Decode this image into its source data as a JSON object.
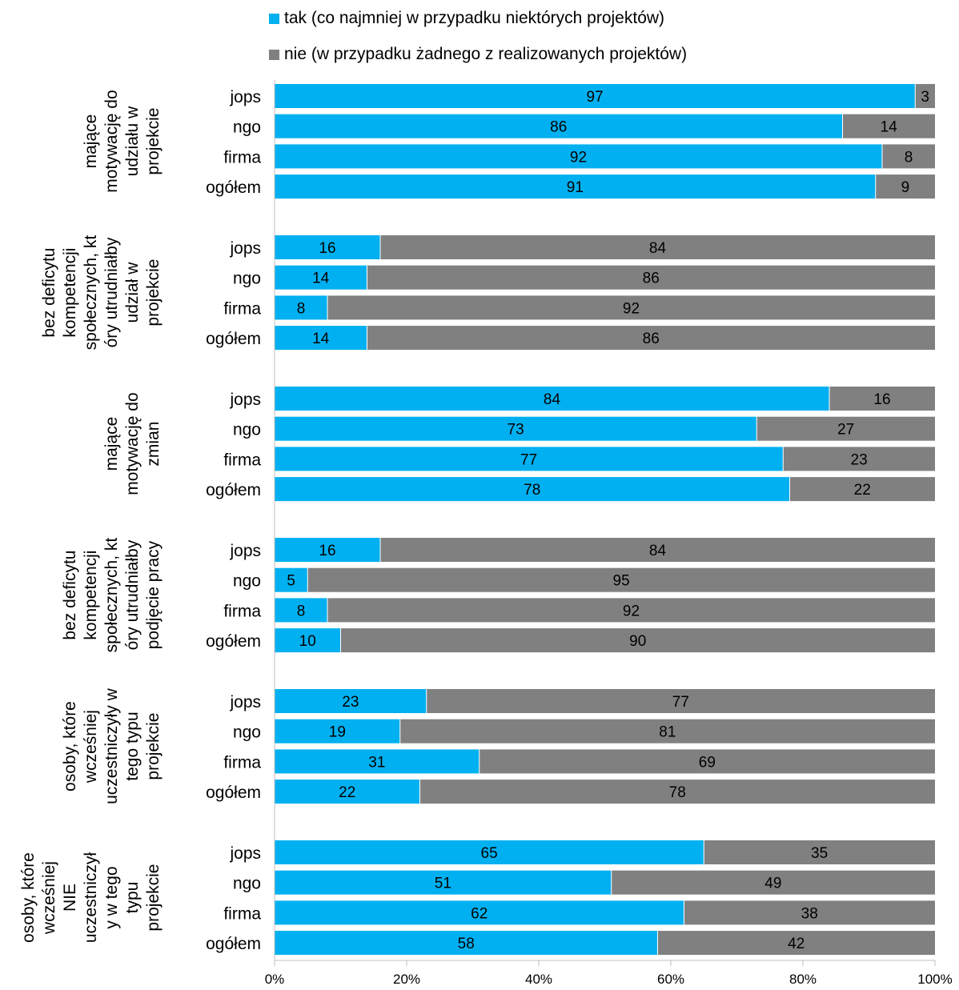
{
  "chart_data": {
    "type": "bar",
    "orientation": "horizontal",
    "stacked": "percent",
    "xlim": [
      0,
      100
    ],
    "x_ticks": [
      "0%",
      "20%",
      "40%",
      "60%",
      "80%",
      "100%"
    ],
    "grid": false,
    "legend_position": "top",
    "series": [
      {
        "name": "tak (co najmniej w przypadku niektórych projektów)",
        "color": "#00B0F0"
      },
      {
        "name": "nie (w przypadku żadnego z realizowanych projektów)",
        "color": "#808080"
      }
    ],
    "groups": [
      {
        "label": [
          "mające",
          "motywację do",
          "udziału w",
          "projekcie"
        ],
        "categories": [
          "jops",
          "ngo",
          "firma",
          "ogółem"
        ],
        "tak": [
          97,
          86,
          92,
          91
        ],
        "nie": [
          3,
          14,
          8,
          9
        ]
      },
      {
        "label": [
          "bez deficytu",
          "kompetencji",
          "społecznych, kt",
          "óry utrudniałby",
          "udział w",
          "projekcie"
        ],
        "categories": [
          "jops",
          "ngo",
          "firma",
          "ogółem"
        ],
        "tak": [
          16,
          14,
          8,
          14
        ],
        "nie": [
          84,
          86,
          92,
          86
        ]
      },
      {
        "label": [
          "mające",
          "motywację do",
          "zmian"
        ],
        "categories": [
          "jops",
          "ngo",
          "firma",
          "ogółem"
        ],
        "tak": [
          84,
          73,
          77,
          78
        ],
        "nie": [
          16,
          27,
          23,
          22
        ]
      },
      {
        "label": [
          "bez deficytu",
          "kompetencji",
          "społecznych, kt",
          "óry utrudniałby",
          "podjęcie pracy"
        ],
        "categories": [
          "jops",
          "ngo",
          "firma",
          "ogółem"
        ],
        "tak": [
          16,
          5,
          8,
          10
        ],
        "nie": [
          84,
          95,
          92,
          90
        ]
      },
      {
        "label": [
          "osoby, które",
          "wcześniej",
          "uczestniczyły w",
          "tego typu",
          "projekcie"
        ],
        "categories": [
          "jops",
          "ngo",
          "firma",
          "ogółem"
        ],
        "tak": [
          23,
          19,
          31,
          22
        ],
        "nie": [
          77,
          81,
          69,
          78
        ]
      },
      {
        "label": [
          "osoby, które",
          "wcześniej",
          "NIE",
          "uczestniczył",
          "y w tego",
          "typu",
          "projekcie"
        ],
        "categories": [
          "jops",
          "ngo",
          "firma",
          "ogółem"
        ],
        "tak": [
          65,
          51,
          62,
          58
        ],
        "nie": [
          35,
          49,
          38,
          42
        ]
      }
    ]
  }
}
